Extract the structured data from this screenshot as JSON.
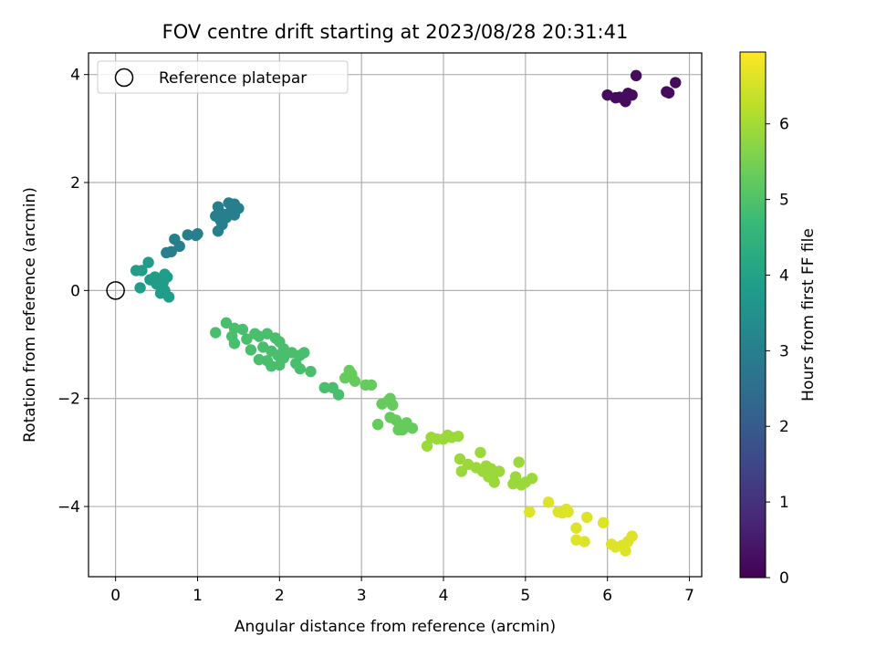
{
  "chart_data": {
    "type": "scatter",
    "title": "FOV centre drift starting at 2023/08/28 20:31:41",
    "xlabel": "Angular distance from reference (arcmin)",
    "ylabel": "Rotation from reference (arcmin)",
    "xlim": [
      -0.33,
      7.15
    ],
    "ylim": [
      -5.3,
      4.4
    ],
    "x_ticks": [
      0,
      1,
      2,
      3,
      4,
      5,
      6,
      7
    ],
    "y_ticks": [
      -4,
      -2,
      0,
      2,
      4
    ],
    "x_tick_labels": [
      "0",
      "1",
      "2",
      "3",
      "4",
      "5",
      "6",
      "7"
    ],
    "y_tick_labels": [
      "−4",
      "−2",
      "0",
      "2",
      "4"
    ],
    "grid": true,
    "legend": {
      "position": "top-left",
      "entries": [
        "Reference platepar"
      ]
    },
    "reference_point": {
      "label": "Reference platepar",
      "x": 0,
      "y": 0,
      "marker": "hollow-circle"
    },
    "colorbar": {
      "label": "Hours from first FF file",
      "min": 0,
      "max": 6.95,
      "ticks": [
        0,
        1,
        2,
        3,
        4,
        5,
        6
      ],
      "tick_labels": [
        "0",
        "1",
        "2",
        "3",
        "4",
        "5",
        "6"
      ],
      "colormap": "viridis",
      "stops": [
        "#440154",
        "#482878",
        "#3e4989",
        "#31688e",
        "#26828e",
        "#1f9e89",
        "#35b779",
        "#6ece58",
        "#b5de2b",
        "#fde725"
      ]
    },
    "series": [
      {
        "hours": 0.2,
        "points": [
          [
            6.0,
            3.62
          ],
          [
            6.1,
            3.57
          ],
          [
            6.15,
            3.58
          ],
          [
            6.22,
            3.5
          ],
          [
            6.25,
            3.65
          ],
          [
            6.3,
            3.62
          ],
          [
            6.35,
            3.98
          ],
          [
            6.72,
            3.68
          ],
          [
            6.75,
            3.66
          ],
          [
            6.83,
            3.85
          ]
        ]
      },
      {
        "hours": 3.0,
        "points": [
          [
            1.25,
            1.55
          ],
          [
            1.38,
            1.62
          ],
          [
            1.45,
            1.6
          ],
          [
            1.5,
            1.52
          ],
          [
            1.3,
            1.42
          ],
          [
            1.4,
            1.45
          ],
          [
            1.22,
            1.38
          ],
          [
            1.28,
            1.3
          ],
          [
            1.35,
            1.35
          ],
          [
            1.45,
            1.4
          ],
          [
            1.25,
            1.1
          ],
          [
            1.3,
            1.22
          ],
          [
            0.88,
            1.03
          ],
          [
            0.98,
            1.02
          ],
          [
            1.0,
            1.05
          ],
          [
            0.72,
            0.95
          ],
          [
            0.78,
            0.82
          ],
          [
            0.68,
            0.72
          ],
          [
            0.62,
            0.7
          ]
        ]
      },
      {
        "hours": 3.8,
        "points": [
          [
            0.25,
            0.37
          ],
          [
            0.32,
            0.37
          ],
          [
            0.4,
            0.52
          ],
          [
            0.48,
            0.25
          ],
          [
            0.42,
            0.2
          ],
          [
            0.52,
            0.15
          ],
          [
            0.6,
            0.3
          ],
          [
            0.63,
            0.25
          ],
          [
            0.55,
            0.08
          ],
          [
            0.5,
            0.12
          ],
          [
            0.58,
            0.15
          ],
          [
            0.3,
            0.05
          ],
          [
            0.55,
            -0.05
          ],
          [
            0.65,
            -0.12
          ],
          [
            0.6,
            0.0
          ]
        ]
      },
      {
        "hours": 4.9,
        "points": [
          [
            1.35,
            -0.6
          ],
          [
            1.45,
            -0.7
          ],
          [
            1.55,
            -0.72
          ],
          [
            1.22,
            -0.78
          ],
          [
            1.42,
            -0.85
          ],
          [
            1.6,
            -0.9
          ],
          [
            1.7,
            -0.8
          ],
          [
            1.75,
            -0.85
          ],
          [
            1.85,
            -0.8
          ],
          [
            1.95,
            -0.88
          ],
          [
            2.0,
            -0.95
          ],
          [
            1.45,
            -0.98
          ],
          [
            1.65,
            -1.1
          ],
          [
            1.8,
            -1.05
          ],
          [
            1.9,
            -1.12
          ],
          [
            2.05,
            -1.08
          ],
          [
            2.15,
            -1.15
          ],
          [
            2.25,
            -1.2
          ],
          [
            2.3,
            -1.15
          ],
          [
            1.75,
            -1.28
          ],
          [
            1.85,
            -1.3
          ],
          [
            1.9,
            -1.4
          ],
          [
            2.0,
            -1.38
          ],
          [
            2.2,
            -1.35
          ],
          [
            2.25,
            -1.45
          ],
          [
            2.38,
            -1.5
          ],
          [
            1.98,
            -1.2
          ],
          [
            2.05,
            -1.25
          ],
          [
            2.55,
            -1.8
          ],
          [
            2.65,
            -1.8
          ],
          [
            2.72,
            -1.93
          ]
        ]
      },
      {
        "hours": 5.3,
        "points": [
          [
            2.8,
            -1.62
          ],
          [
            2.85,
            -1.48
          ],
          [
            2.88,
            -1.55
          ],
          [
            2.92,
            -1.68
          ],
          [
            3.05,
            -1.75
          ],
          [
            3.12,
            -1.75
          ],
          [
            3.25,
            -2.1
          ],
          [
            3.32,
            -2.05
          ],
          [
            3.35,
            -2.0
          ],
          [
            3.38,
            -2.12
          ],
          [
            3.2,
            -2.48
          ],
          [
            3.35,
            -2.35
          ],
          [
            3.42,
            -2.4
          ],
          [
            3.48,
            -2.5
          ],
          [
            3.45,
            -2.58
          ],
          [
            3.55,
            -2.45
          ],
          [
            3.62,
            -2.55
          ],
          [
            3.5,
            -2.58
          ]
        ]
      },
      {
        "hours": 5.9,
        "points": [
          [
            3.8,
            -2.88
          ],
          [
            3.85,
            -2.72
          ],
          [
            3.92,
            -2.75
          ],
          [
            4.0,
            -2.75
          ],
          [
            4.05,
            -2.68
          ],
          [
            4.1,
            -2.72
          ],
          [
            4.18,
            -2.7
          ],
          [
            4.2,
            -3.12
          ],
          [
            4.3,
            -3.22
          ],
          [
            4.22,
            -3.35
          ],
          [
            4.4,
            -3.28
          ],
          [
            4.45,
            -3.0
          ],
          [
            4.48,
            -3.35
          ],
          [
            4.52,
            -3.25
          ],
          [
            4.58,
            -3.3
          ],
          [
            4.55,
            -3.45
          ],
          [
            4.6,
            -3.48
          ],
          [
            4.62,
            -3.55
          ],
          [
            4.68,
            -3.35
          ],
          [
            4.88,
            -3.45
          ],
          [
            4.85,
            -3.58
          ],
          [
            4.92,
            -3.18
          ],
          [
            4.95,
            -3.6
          ],
          [
            5.0,
            -3.55
          ],
          [
            5.08,
            -3.48
          ]
        ]
      },
      {
        "hours": 6.6,
        "points": [
          [
            5.05,
            -4.1
          ],
          [
            5.28,
            -3.92
          ],
          [
            5.4,
            -4.1
          ],
          [
            5.45,
            -4.12
          ],
          [
            5.5,
            -4.05
          ],
          [
            5.52,
            -4.1
          ],
          [
            5.62,
            -4.4
          ],
          [
            5.62,
            -4.62
          ],
          [
            5.72,
            -4.65
          ],
          [
            5.75,
            -4.2
          ],
          [
            5.95,
            -4.3
          ],
          [
            6.05,
            -4.7
          ],
          [
            6.1,
            -4.75
          ],
          [
            6.18,
            -4.72
          ],
          [
            6.22,
            -4.82
          ],
          [
            6.25,
            -4.65
          ],
          [
            6.3,
            -4.55
          ]
        ]
      }
    ]
  }
}
